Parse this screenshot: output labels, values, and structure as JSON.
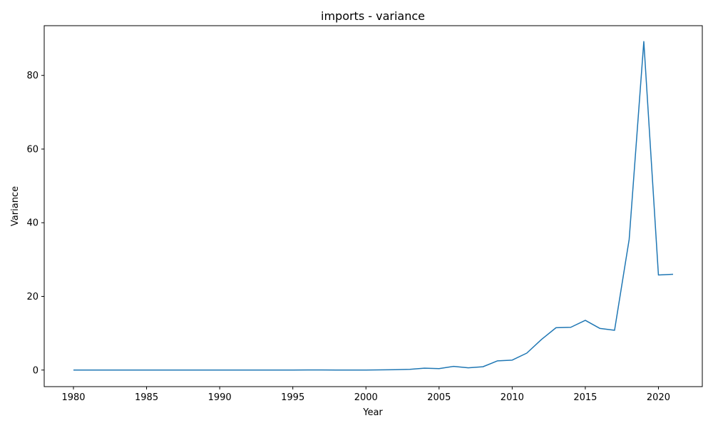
{
  "chart_data": {
    "type": "line",
    "title": "imports - variance",
    "xlabel": "Year",
    "ylabel": "Variance",
    "xlim": [
      1978,
      2023
    ],
    "ylim": [
      -4.5,
      93.5
    ],
    "xticks": [
      1980,
      1985,
      1990,
      1995,
      2000,
      2005,
      2010,
      2015,
      2020
    ],
    "yticks": [
      0,
      20,
      40,
      60,
      80
    ],
    "grid": false,
    "line_color": "#1f77b4",
    "series": [
      {
        "name": "variance",
        "x": [
          1980,
          1981,
          1982,
          1983,
          1984,
          1985,
          1986,
          1987,
          1988,
          1989,
          1990,
          1991,
          1992,
          1993,
          1994,
          1995,
          1996,
          1997,
          1998,
          1999,
          2000,
          2001,
          2002,
          2003,
          2004,
          2005,
          2006,
          2007,
          2008,
          2009,
          2010,
          2011,
          2012,
          2013,
          2014,
          2015,
          2016,
          2017,
          2018,
          2019,
          2020,
          2021
        ],
        "y": [
          0,
          0,
          0,
          0,
          0,
          0,
          0,
          0,
          0,
          0,
          0,
          0,
          0,
          0,
          0,
          0,
          0.02,
          0.02,
          0.01,
          0.01,
          0.01,
          0.05,
          0.1,
          0.2,
          0.5,
          0.4,
          1.0,
          0.6,
          0.9,
          2.5,
          2.7,
          4.6,
          8.3,
          11.5,
          11.6,
          13.5,
          11.3,
          10.8,
          35.5,
          89.2,
          25.8,
          26.0
        ]
      }
    ]
  }
}
